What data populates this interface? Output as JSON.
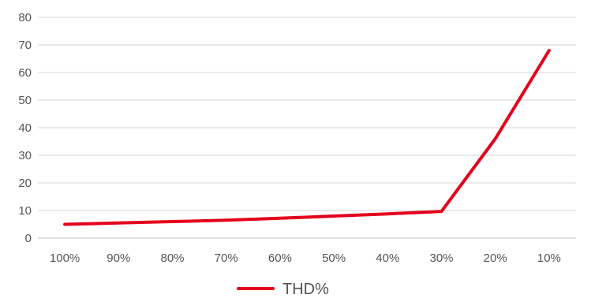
{
  "chart_data": {
    "type": "line",
    "categories": [
      "100%",
      "90%",
      "80%",
      "70%",
      "60%",
      "50%",
      "40%",
      "30%",
      "20%",
      "10%"
    ],
    "series": [
      {
        "name": "THD%",
        "values": [
          5,
          5.5,
          6,
          6.5,
          7.2,
          8,
          8.8,
          9.7,
          36,
          68
        ],
        "color": "#e3001b"
      }
    ],
    "ylim": [
      0,
      80
    ],
    "yticks": [
      0,
      10,
      20,
      30,
      40,
      50,
      60,
      70,
      80
    ],
    "grid": true,
    "legend": "bottom"
  }
}
